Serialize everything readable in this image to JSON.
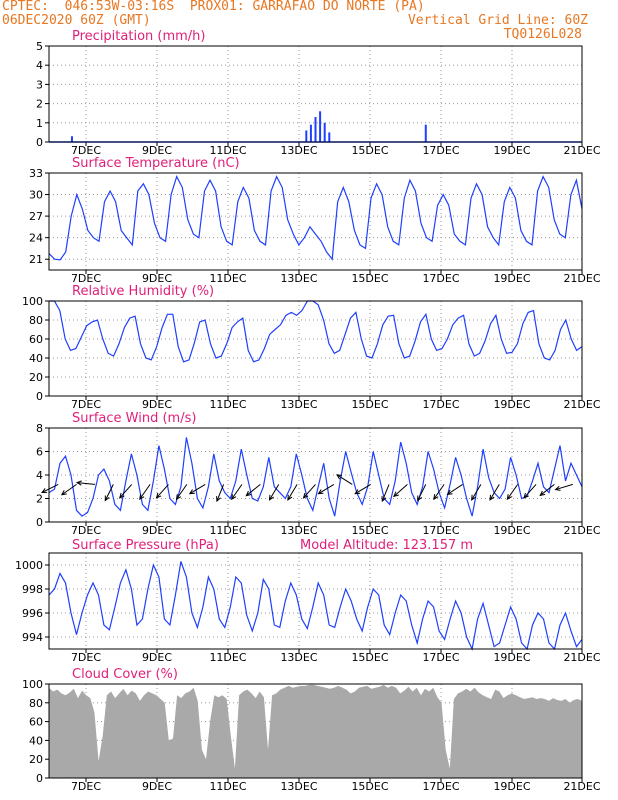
{
  "header": {
    "line1": "CPTEC:  046:53W-03:16S  PROX01: GARRAFAO DO NORTE (PA)",
    "line2_left": "06DEC2020 60Z (GMT)",
    "line2_right": "Vertical Grid Line: 60Z",
    "line3_right": "TQ0126L028",
    "colors": {
      "header": "#e87722",
      "panel_title": "#e0207a",
      "series": "#1f3fff",
      "wind_arrow": "#000000",
      "cloud_fill": "#a9a9a9"
    }
  },
  "date_ticks": [
    "7DEC",
    "9DEC",
    "11DEC",
    "13DEC",
    "15DEC",
    "17DEC",
    "19DEC",
    "21DEC"
  ],
  "chart_data": [
    {
      "type": "bar",
      "title": "Precipitation (mm/h)",
      "x_range": [
        "6DEC2020 12Z",
        "21DEC2020 00Z"
      ],
      "ylim": [
        0,
        5
      ],
      "yticks": [
        0,
        1,
        2,
        3,
        4,
        5
      ],
      "bars": [
        {
          "x": "7DEC 03Z",
          "value": 0.3
        },
        {
          "x": "13DEC 12Z",
          "value": 0.6
        },
        {
          "x": "13DEC 15Z",
          "value": 0.9
        },
        {
          "x": "13DEC 18Z",
          "value": 1.3
        },
        {
          "x": "13DEC 21Z",
          "value": 1.6
        },
        {
          "x": "14DEC 00Z",
          "value": 1.0
        },
        {
          "x": "14DEC 03Z",
          "value": 0.5
        },
        {
          "x": "16DEC 18Z",
          "value": 0.9
        }
      ]
    },
    {
      "type": "line",
      "title": "Surface Temperature (nC)",
      "ylim": [
        19.5,
        33
      ],
      "yticks": [
        21,
        24,
        27,
        30,
        33
      ],
      "series": [
        {
          "values": [
            21.8,
            21.0,
            20.9,
            22.0,
            27.0,
            30.0,
            28.0,
            25.0,
            24.0,
            23.5,
            29.0,
            30.5,
            29.0,
            25.0,
            24.0,
            23.0,
            30.5,
            31.5,
            30.0,
            26.0,
            24.0,
            23.5,
            30.0,
            32.5,
            31.0,
            26.5,
            24.5,
            24.0,
            30.5,
            32.0,
            30.5,
            25.5,
            23.5,
            23.0,
            29.0,
            31.0,
            29.5,
            25.0,
            23.5,
            23.0,
            30.5,
            32.5,
            31.0,
            26.5,
            24.5,
            23.0,
            24.0,
            25.5,
            24.5,
            23.5,
            22.0,
            21.0,
            29.0,
            31.0,
            29.0,
            25.0,
            23.0,
            22.5,
            29.5,
            31.5,
            30.0,
            25.5,
            23.5,
            23.0,
            29.5,
            32.0,
            30.5,
            26.0,
            24.0,
            23.5,
            28.5,
            30.0,
            28.5,
            24.5,
            23.5,
            23.0,
            29.5,
            31.5,
            30.0,
            25.5,
            24.0,
            23.0,
            29.0,
            31.0,
            29.5,
            25.0,
            23.5,
            23.0,
            30.5,
            32.5,
            31.0,
            26.5,
            24.5,
            24.0,
            30.0,
            32.0,
            28.0
          ]
        }
      ]
    },
    {
      "type": "line",
      "title": "Relative Humidity (%)",
      "ylim": [
        0,
        100
      ],
      "yticks": [
        0,
        20,
        40,
        60,
        80,
        100
      ],
      "series": [
        {
          "values": [
            100,
            100,
            90,
            60,
            48,
            50,
            62,
            74,
            78,
            80,
            60,
            45,
            42,
            55,
            72,
            82,
            84,
            55,
            40,
            38,
            52,
            72,
            86,
            86,
            52,
            36,
            38,
            56,
            78,
            80,
            55,
            40,
            42,
            55,
            72,
            78,
            82,
            48,
            36,
            38,
            50,
            65,
            70,
            75,
            85,
            88,
            85,
            90,
            100,
            100,
            96,
            80,
            55,
            45,
            48,
            65,
            82,
            88,
            60,
            42,
            40,
            55,
            75,
            84,
            85,
            55,
            40,
            42,
            58,
            78,
            86,
            60,
            48,
            50,
            60,
            75,
            82,
            85,
            55,
            42,
            45,
            58,
            76,
            85,
            60,
            45,
            46,
            55,
            76,
            88,
            90,
            55,
            40,
            38,
            48,
            70,
            80,
            60,
            48,
            52
          ]
        }
      ]
    },
    {
      "type": "line",
      "title": "Surface Wind (m/s)",
      "ylim": [
        0,
        8
      ],
      "yticks": [
        0,
        2,
        4,
        6,
        8
      ],
      "series": [
        {
          "values": [
            2.5,
            2.8,
            5.0,
            5.6,
            4.0,
            1.0,
            0.5,
            0.8,
            2.0,
            4.0,
            4.5,
            3.5,
            1.5,
            1.0,
            3.5,
            5.8,
            4.0,
            1.5,
            1.0,
            3.5,
            6.5,
            4.5,
            2.0,
            1.5,
            3.0,
            7.2,
            5.0,
            2.0,
            1.2,
            3.0,
            5.8,
            3.5,
            2.5,
            2.0,
            3.5,
            6.2,
            4.0,
            2.0,
            1.8,
            3.0,
            5.5,
            3.0,
            2.5,
            2.0,
            3.0,
            5.8,
            4.0,
            2.0,
            1.0,
            3.0,
            5.0,
            2.0,
            0.5,
            3.5,
            6.0,
            4.2,
            2.5,
            1.5,
            3.0,
            6.0,
            4.0,
            2.0,
            1.5,
            3.5,
            6.8,
            5.0,
            2.5,
            1.5,
            3.0,
            6.0,
            4.5,
            2.5,
            1.2,
            3.2,
            5.5,
            4.0,
            2.0,
            0.5,
            3.0,
            6.2,
            3.8,
            2.5,
            2.0,
            2.8,
            5.5,
            4.0,
            2.0,
            2.2,
            3.5,
            5.0,
            3.0,
            2.5,
            4.5,
            6.5,
            3.5,
            5.0,
            4.0,
            3.0
          ]
        }
      ],
      "arrows": [
        {
          "x": "6DEC 18Z",
          "dx": -1.0,
          "dy": -0.5
        },
        {
          "x": "7DEC 06Z",
          "dx": -1.0,
          "dy": -0.7
        },
        {
          "x": "7DEC 18Z",
          "dx": -1.0,
          "dy": 0.1
        },
        {
          "x": "8DEC 06Z",
          "dx": -0.5,
          "dy": -1.0
        },
        {
          "x": "8DEC 18Z",
          "dx": -0.8,
          "dy": -0.9
        },
        {
          "x": "9DEC 06Z",
          "dx": -0.7,
          "dy": -1.0
        },
        {
          "x": "9DEC 18Z",
          "dx": -0.8,
          "dy": -0.9
        },
        {
          "x": "10DEC 06Z",
          "dx": -0.7,
          "dy": -1.0
        },
        {
          "x": "10DEC 18Z",
          "dx": -1.0,
          "dy": -0.6
        },
        {
          "x": "11DEC 06Z",
          "dx": -0.4,
          "dy": -1.0
        },
        {
          "x": "11DEC 18Z",
          "dx": -0.7,
          "dy": -1.0
        },
        {
          "x": "12DEC 06Z",
          "dx": -1.0,
          "dy": -0.8
        },
        {
          "x": "12DEC 18Z",
          "dx": -0.6,
          "dy": -1.0
        },
        {
          "x": "13DEC 06Z",
          "dx": -0.6,
          "dy": -1.0
        },
        {
          "x": "13DEC 18Z",
          "dx": -0.8,
          "dy": -0.9
        },
        {
          "x": "14DEC 06Z",
          "dx": -1.0,
          "dy": -0.6
        },
        {
          "x": "14DEC 18Z",
          "dx": -0.8,
          "dy": 0.5
        },
        {
          "x": "15DEC 06Z",
          "dx": -1.0,
          "dy": -0.6
        },
        {
          "x": "15DEC 18Z",
          "dx": -0.4,
          "dy": -1.0
        },
        {
          "x": "16DEC 06Z",
          "dx": -0.9,
          "dy": -0.8
        },
        {
          "x": "16DEC 18Z",
          "dx": -0.5,
          "dy": -1.0
        },
        {
          "x": "17DEC 06Z",
          "dx": -0.7,
          "dy": -1.0
        },
        {
          "x": "17DEC 18Z",
          "dx": -0.9,
          "dy": -0.6
        },
        {
          "x": "18DEC 06Z",
          "dx": -0.6,
          "dy": -1.0
        },
        {
          "x": "18DEC 18Z",
          "dx": -0.6,
          "dy": -1.0
        },
        {
          "x": "19DEC 06Z",
          "dx": -0.7,
          "dy": -1.0
        },
        {
          "x": "19DEC 18Z",
          "dx": -0.8,
          "dy": -0.9
        },
        {
          "x": "20DEC 06Z",
          "dx": -0.9,
          "dy": -0.7
        },
        {
          "x": "20DEC 18Z",
          "dx": -1.0,
          "dy": -0.3
        }
      ]
    },
    {
      "type": "line",
      "title": "Surface Pressure (hPa)",
      "annotation": "Model Altitude: 123.157 m",
      "ylim": [
        993,
        1001
      ],
      "yticks": [
        994,
        996,
        998,
        1000
      ],
      "series": [
        {
          "values": [
            997.5,
            998.0,
            999.3,
            998.5,
            996.0,
            994.2,
            996.0,
            997.5,
            998.5,
            997.5,
            995.0,
            994.6,
            996.5,
            998.5,
            999.6,
            998.0,
            995.0,
            995.5,
            998.0,
            1000.0,
            999.0,
            995.5,
            995.0,
            997.5,
            1000.3,
            999.0,
            996.0,
            994.8,
            996.5,
            999.0,
            998.0,
            995.5,
            994.8,
            996.5,
            999.0,
            998.5,
            995.8,
            994.5,
            996.0,
            998.8,
            998.0,
            995.0,
            994.8,
            997.0,
            998.5,
            997.5,
            995.5,
            994.7,
            996.5,
            998.5,
            997.5,
            995.0,
            994.8,
            996.5,
            998.0,
            997.0,
            995.5,
            994.5,
            996.5,
            998.0,
            997.5,
            995.0,
            994.2,
            996.0,
            997.5,
            997.0,
            995.0,
            993.5,
            995.5,
            997.0,
            996.5,
            994.5,
            993.8,
            995.5,
            997.0,
            996.0,
            994.0,
            993.0,
            995.5,
            996.8,
            995.0,
            993.2,
            993.5,
            995.0,
            996.5,
            995.5,
            993.5,
            993.0,
            995.0,
            996.0,
            995.5,
            993.5,
            993.0,
            995.0,
            996.0,
            994.5,
            993.2,
            993.8
          ]
        }
      ]
    },
    {
      "type": "area",
      "title": "Cloud Cover (%)",
      "ylim": [
        0,
        100
      ],
      "yticks": [
        0,
        20,
        40,
        60,
        80,
        100
      ],
      "series": [
        {
          "values": [
            96,
            92,
            94,
            90,
            88,
            91,
            95,
            85,
            93,
            88,
            85,
            70,
            18,
            45,
            88,
            92,
            85,
            90,
            95,
            88,
            93,
            90,
            82,
            88,
            92,
            90,
            88,
            84,
            80,
            40,
            42,
            88,
            85,
            90,
            92,
            96,
            82,
            30,
            20,
            60,
            88,
            86,
            88,
            84,
            45,
            10,
            88,
            92,
            94,
            90,
            85,
            92,
            86,
            30,
            88,
            90,
            94,
            96,
            98,
            96,
            97,
            98,
            98,
            99,
            99,
            98,
            97,
            96,
            95,
            96,
            98,
            96,
            94,
            90,
            92,
            96,
            97,
            98,
            95,
            96,
            97,
            99,
            96,
            98,
            96,
            90,
            93,
            97,
            92,
            96,
            88,
            95,
            92,
            96,
            86,
            80,
            30,
            10,
            84,
            90,
            92,
            95,
            92,
            96,
            91,
            88,
            86,
            84,
            94,
            92,
            85,
            88,
            90,
            88,
            86,
            84,
            85,
            86,
            84,
            85,
            84,
            82,
            85,
            83,
            82,
            84,
            80,
            83,
            84,
            82
          ]
        }
      ]
    }
  ]
}
